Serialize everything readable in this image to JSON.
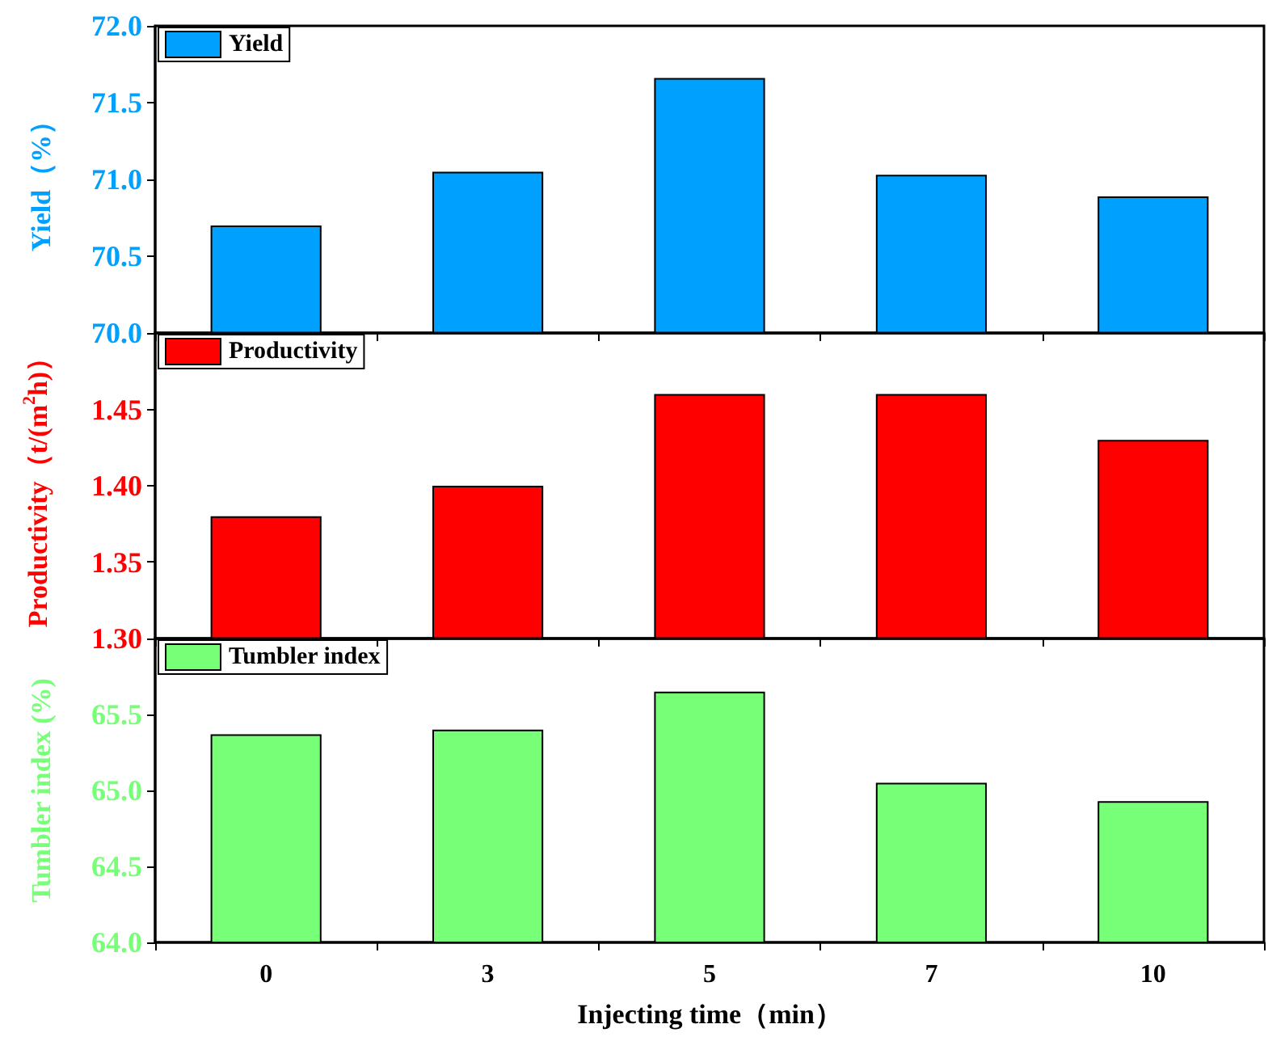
{
  "chart_data": [
    {
      "type": "bar",
      "categories": [
        "0",
        "3",
        "5",
        "7",
        "10"
      ],
      "series": [
        {
          "name": "Yield",
          "color": "#00a0ff",
          "values": [
            70.7,
            71.05,
            71.66,
            71.03,
            70.89
          ]
        }
      ],
      "ylabel": "Yield（%）",
      "ylim": [
        70,
        72
      ],
      "yticks": [
        {
          "value": 70,
          "label": "70.0"
        },
        {
          "value": 70.5,
          "label": "70.5"
        },
        {
          "value": 71,
          "label": "71.0"
        },
        {
          "value": 71.5,
          "label": "71.5"
        },
        {
          "value": 72,
          "label": "72.0"
        }
      ],
      "legend": "top left",
      "tick_labels": "y"
    },
    {
      "type": "bar",
      "categories": [
        "0",
        "3",
        "5",
        "7",
        "10"
      ],
      "series": [
        {
          "name": "Productivity",
          "color": "#ff0000",
          "values": [
            1.38,
            1.4,
            1.46,
            1.46,
            1.43
          ]
        }
      ],
      "ylabel": "Productivity（t/(m$^{2}$h)）",
      "ylim": [
        1.3,
        1.5
      ],
      "yticks": [
        {
          "value": 1.3,
          "label": "1.30"
        },
        {
          "value": 1.35,
          "label": "1.35"
        },
        {
          "value": 1.4,
          "label": "1.40"
        },
        {
          "value": 1.45,
          "label": "1.45"
        },
        {
          "value": 1.5,
          "label": null
        }
      ],
      "legend": "top left",
      "tick_labels": "y"
    },
    {
      "type": "bar",
      "categories": [
        "0",
        "3",
        "5",
        "7",
        "10"
      ],
      "series": [
        {
          "name": "Tumbler index",
          "color": "#77ff77",
          "values": [
            65.37,
            65.4,
            65.65,
            65.05,
            64.93
          ]
        }
      ],
      "ylabel": "Tumbler index (%)",
      "xlabel": "Injecting time（min）",
      "ylim": [
        64,
        66
      ],
      "yticks": [
        {
          "value": 64,
          "label": "64.0"
        },
        {
          "value": 64.5,
          "label": "64.5"
        },
        {
          "value": 65,
          "label": "65.0"
        },
        {
          "value": 65.5,
          "label": "65.5"
        },
        {
          "value": 66,
          "label": null
        }
      ],
      "legend": "top left"
    }
  ]
}
